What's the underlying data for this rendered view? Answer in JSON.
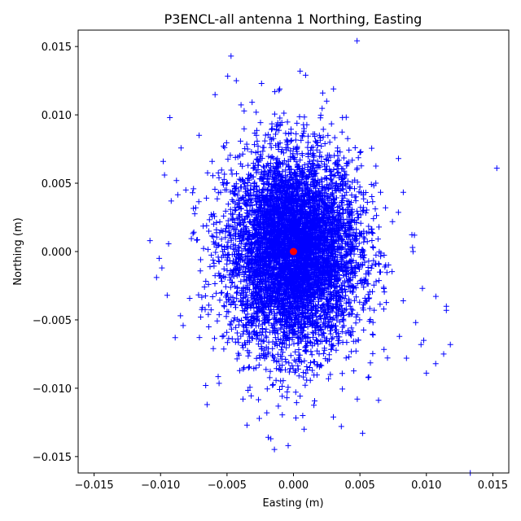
{
  "chart_data": {
    "type": "scatter",
    "title": "P3ENCL-all antenna 1 Northing, Easting",
    "xlabel": "Easting (m)",
    "ylabel": "Northing (m)",
    "xlim": [
      -0.0162,
      0.0162
    ],
    "ylim": [
      -0.0162,
      0.0162
    ],
    "xticks": [
      -0.015,
      -0.01,
      -0.005,
      0.0,
      0.005,
      0.01,
      0.015
    ],
    "yticks": [
      -0.015,
      -0.01,
      -0.005,
      0.0,
      0.005,
      0.01,
      0.015
    ],
    "xtick_labels": [
      "−0.015",
      "−0.010",
      "−0.005",
      "0.000",
      "0.005",
      "0.010",
      "0.015"
    ],
    "ytick_labels": [
      "−0.015",
      "−0.010",
      "−0.005",
      "0.000",
      "0.005",
      "0.010",
      "0.015"
    ],
    "grid": false,
    "series": [
      {
        "marker": "plus",
        "color": "#0000ff",
        "distribution": {
          "center": [
            0.0,
            0.0
          ],
          "std_easting": 0.0025,
          "std_northing": 0.0036,
          "count": 6000
        },
        "x": [
          -0.0047,
          -0.0043,
          0.0005,
          -0.0024,
          -0.0014,
          0.0022,
          -0.0093,
          0.0025,
          -0.0098,
          -0.0097,
          -0.0092,
          -0.0108,
          -0.0103,
          -0.0101,
          -0.0095,
          -0.0099,
          -0.0089,
          -0.0085,
          -0.0088,
          -0.0081,
          -0.0071,
          -0.0066,
          -0.0065,
          0.0118,
          0.0113,
          0.0115,
          0.0115,
          0.0107,
          0.01,
          0.0098,
          0.0096,
          0.0092,
          0.0085,
          0.0091,
          0.0079,
          0.009,
          0.0097,
          0.0153,
          0.0133,
          0.0052,
          -0.0019,
          -0.0017,
          0.0008,
          -0.0004,
          -0.0035,
          -0.0038,
          0.0048,
          0.0036,
          0.0007,
          -0.002,
          0.003
        ],
        "y": [
          0.0143,
          0.0125,
          0.0132,
          0.0123,
          0.0117,
          0.0116,
          0.0098,
          0.011,
          0.0066,
          0.0056,
          0.0037,
          0.0008,
          -0.0019,
          -0.0005,
          -0.0032,
          -0.0012,
          -0.0063,
          -0.0047,
          0.0052,
          0.0045,
          0.0085,
          -0.0098,
          -0.0112,
          -0.0068,
          -0.0075,
          -0.004,
          -0.0043,
          -0.0082,
          -0.0089,
          -0.0065,
          -0.0068,
          -0.0052,
          -0.0078,
          0.0012,
          0.0068,
          0.0,
          -0.0027,
          0.0061,
          -0.0162,
          -0.0133,
          -0.0136,
          -0.0137,
          -0.013,
          -0.0142,
          -0.0127,
          -0.0108,
          -0.0108,
          -0.0128,
          -0.012,
          -0.0118,
          -0.0121
        ]
      },
      {
        "marker": "circle",
        "color": "#ff0000",
        "x": [
          0.0
        ],
        "y": [
          0.0
        ]
      }
    ]
  }
}
